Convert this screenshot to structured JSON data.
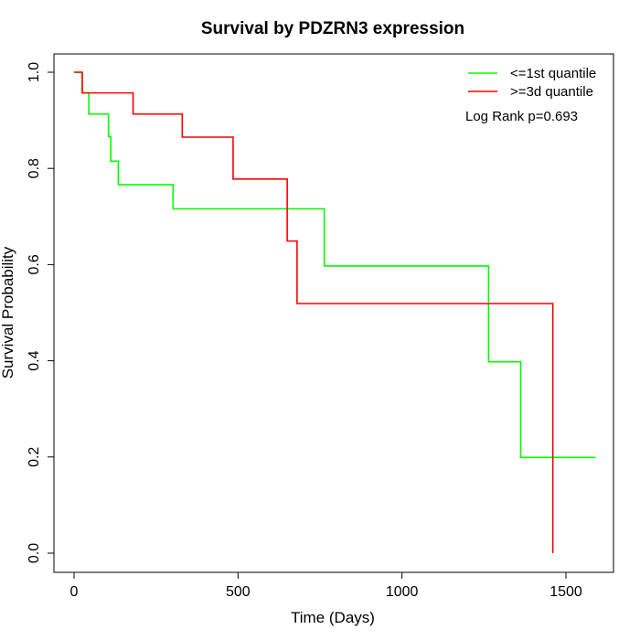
{
  "chart_data": {
    "type": "line",
    "step": true,
    "title": "Survival by PDZRN3 expression",
    "xlabel": "Time (Days)",
    "ylabel": "Survival Probability",
    "xlim": [
      0,
      1650
    ],
    "ylim": [
      0,
      1
    ],
    "x_ticks": [
      0,
      500,
      1000,
      1500
    ],
    "x_tick_labels": [
      "0",
      "500",
      "1000",
      "1500"
    ],
    "y_ticks": [
      0.0,
      0.2,
      0.4,
      0.6,
      0.8,
      1.0
    ],
    "y_tick_labels": [
      "0.0",
      "0.2",
      "0.4",
      "0.6",
      "0.8",
      "1.0"
    ],
    "grid": false,
    "legend_position": "top-right",
    "annotation": "Log Rank p=0.693",
    "series": [
      {
        "name": "<=1st quantile",
        "color": "#00ff00",
        "x": [
          0,
          25,
          45,
          105,
          112,
          135,
          302,
          763,
          1264,
          1362,
          1590
        ],
        "y": [
          1.0,
          0.957,
          0.913,
          0.866,
          0.815,
          0.766,
          0.716,
          0.597,
          0.398,
          0.199,
          0.199
        ]
      },
      {
        "name": ">=3d quantile",
        "color": "#ff0000",
        "x": [
          0,
          25,
          180,
          330,
          485,
          650,
          680,
          1460,
          1460
        ],
        "y": [
          1.0,
          0.957,
          0.913,
          0.865,
          0.778,
          0.649,
          0.519,
          0.519,
          0.0
        ]
      }
    ]
  }
}
